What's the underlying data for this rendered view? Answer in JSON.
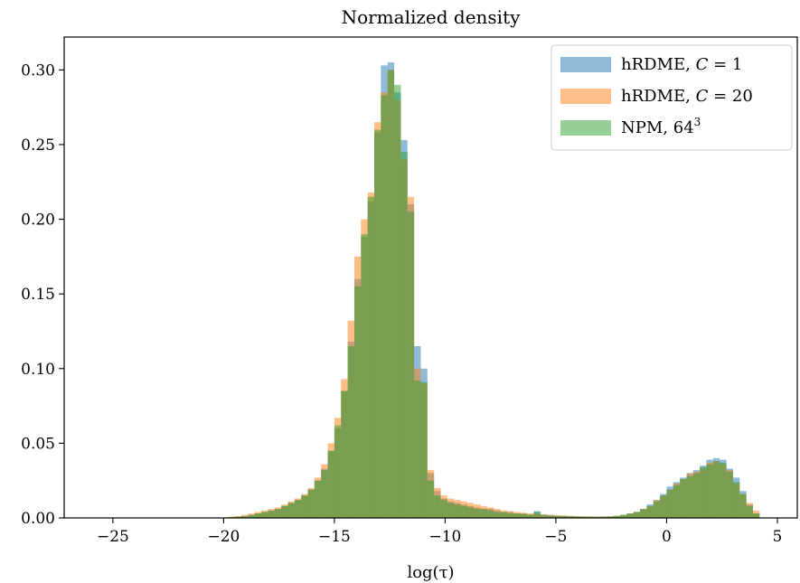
{
  "chart_data": {
    "type": "bar",
    "title": "Normalized density",
    "xlabel": "log(τ)",
    "ylabel": "",
    "xlim": [
      -27.2,
      5.9
    ],
    "ylim": [
      0,
      0.322
    ],
    "xticks": [
      -25,
      -20,
      -15,
      -10,
      -5,
      0,
      5
    ],
    "xtick_labels": [
      "−25",
      "−20",
      "−15",
      "−10",
      "−5",
      "0",
      "5"
    ],
    "yticks": [
      0.0,
      0.05,
      0.1,
      0.15,
      0.2,
      0.25,
      0.3
    ],
    "ytick_labels": [
      "0.00",
      "0.05",
      "0.10",
      "0.15",
      "0.20",
      "0.25",
      "0.30"
    ],
    "bin_width": 0.3,
    "grid": false,
    "legend_position": "top-right",
    "series": [
      {
        "name": "hRDME, C = 1",
        "legend_parts": [
          "hRDME, ",
          "C",
          " = 1"
        ],
        "color": "#1f77b4",
        "alpha": 0.5,
        "bins": [
          [
            -19.8,
            0.0005
          ],
          [
            -19.5,
            0.0008
          ],
          [
            -19.2,
            0.0013
          ],
          [
            -18.9,
            0.002
          ],
          [
            -18.6,
            0.003
          ],
          [
            -18.3,
            0.004
          ],
          [
            -18.0,
            0.005
          ],
          [
            -17.7,
            0.006
          ],
          [
            -17.4,
            0.008
          ],
          [
            -17.1,
            0.01
          ],
          [
            -16.8,
            0.012
          ],
          [
            -16.5,
            0.015
          ],
          [
            -16.2,
            0.019
          ],
          [
            -15.9,
            0.025
          ],
          [
            -15.6,
            0.033
          ],
          [
            -15.3,
            0.045
          ],
          [
            -15.0,
            0.06
          ],
          [
            -14.7,
            0.085
          ],
          [
            -14.4,
            0.118
          ],
          [
            -14.1,
            0.16
          ],
          [
            -13.8,
            0.188
          ],
          [
            -13.5,
            0.212
          ],
          [
            -13.2,
            0.258
          ],
          [
            -12.9,
            0.303
          ],
          [
            -12.6,
            0.305
          ],
          [
            -12.3,
            0.285
          ],
          [
            -12.0,
            0.253
          ],
          [
            -11.7,
            0.21
          ],
          [
            -11.4,
            0.115
          ],
          [
            -11.1,
            0.1
          ],
          [
            -10.8,
            0.03
          ],
          [
            -10.5,
            0.018
          ],
          [
            -10.2,
            0.013
          ],
          [
            -9.9,
            0.011
          ],
          [
            -9.6,
            0.01
          ],
          [
            -9.3,
            0.009
          ],
          [
            -9.0,
            0.008
          ],
          [
            -8.7,
            0.007
          ],
          [
            -8.4,
            0.006
          ],
          [
            -8.1,
            0.006
          ],
          [
            -7.8,
            0.005
          ],
          [
            -7.5,
            0.004
          ],
          [
            -7.2,
            0.004
          ],
          [
            -6.9,
            0.003
          ],
          [
            -6.6,
            0.003
          ],
          [
            -6.3,
            0.0025
          ],
          [
            -6.0,
            0.0045
          ],
          [
            -5.7,
            0.002
          ],
          [
            -5.4,
            0.002
          ],
          [
            -5.1,
            0.0015
          ],
          [
            -4.8,
            0.0015
          ],
          [
            -4.5,
            0.0012
          ],
          [
            -4.2,
            0.001
          ],
          [
            -3.9,
            0.001
          ],
          [
            -3.6,
            0.0009
          ],
          [
            -3.3,
            0.0008
          ],
          [
            -3.0,
            0.0008
          ],
          [
            -2.7,
            0.0009
          ],
          [
            -2.4,
            0.0012
          ],
          [
            -2.1,
            0.002
          ],
          [
            -1.8,
            0.003
          ],
          [
            -1.5,
            0.004
          ],
          [
            -1.2,
            0.006
          ],
          [
            -0.9,
            0.009
          ],
          [
            -0.6,
            0.012
          ],
          [
            -0.3,
            0.016
          ],
          [
            0.0,
            0.021
          ],
          [
            0.3,
            0.024
          ],
          [
            0.6,
            0.027
          ],
          [
            0.9,
            0.03
          ],
          [
            1.2,
            0.032
          ],
          [
            1.5,
            0.035
          ],
          [
            1.8,
            0.039
          ],
          [
            2.1,
            0.04
          ],
          [
            2.4,
            0.039
          ],
          [
            2.7,
            0.033
          ],
          [
            3.0,
            0.027
          ],
          [
            3.3,
            0.018
          ],
          [
            3.6,
            0.009
          ],
          [
            3.9,
            0.003
          ]
        ]
      },
      {
        "name": "hRDME, C = 20",
        "legend_parts": [
          "hRDME, ",
          "C",
          " = 20"
        ],
        "color": "#ff7f0e",
        "alpha": 0.5,
        "bins": [
          [
            -19.8,
            0.0008
          ],
          [
            -19.5,
            0.0012
          ],
          [
            -19.2,
            0.002
          ],
          [
            -18.9,
            0.003
          ],
          [
            -18.6,
            0.004
          ],
          [
            -18.3,
            0.005
          ],
          [
            -18.0,
            0.006
          ],
          [
            -17.7,
            0.007
          ],
          [
            -17.4,
            0.009
          ],
          [
            -17.1,
            0.011
          ],
          [
            -16.8,
            0.013
          ],
          [
            -16.5,
            0.016
          ],
          [
            -16.2,
            0.02
          ],
          [
            -15.9,
            0.027
          ],
          [
            -15.6,
            0.036
          ],
          [
            -15.3,
            0.05
          ],
          [
            -15.0,
            0.067
          ],
          [
            -14.7,
            0.093
          ],
          [
            -14.4,
            0.132
          ],
          [
            -14.1,
            0.175
          ],
          [
            -13.8,
            0.2
          ],
          [
            -13.5,
            0.218
          ],
          [
            -13.2,
            0.265
          ],
          [
            -12.9,
            0.285
          ],
          [
            -12.6,
            0.3
          ],
          [
            -12.3,
            0.28
          ],
          [
            -12.0,
            0.24
          ],
          [
            -11.7,
            0.215
          ],
          [
            -11.4,
            0.1
          ],
          [
            -11.1,
            0.09
          ],
          [
            -10.8,
            0.032
          ],
          [
            -10.5,
            0.02
          ],
          [
            -10.2,
            0.015
          ],
          [
            -9.9,
            0.013
          ],
          [
            -9.6,
            0.012
          ],
          [
            -9.3,
            0.011
          ],
          [
            -9.0,
            0.01
          ],
          [
            -8.7,
            0.009
          ],
          [
            -8.4,
            0.008
          ],
          [
            -8.1,
            0.007
          ],
          [
            -7.8,
            0.006
          ],
          [
            -7.5,
            0.005
          ],
          [
            -7.2,
            0.0045
          ],
          [
            -6.9,
            0.004
          ],
          [
            -6.6,
            0.0035
          ],
          [
            -6.3,
            0.003
          ],
          [
            -6.0,
            0.0028
          ],
          [
            -5.7,
            0.0025
          ],
          [
            -5.4,
            0.002
          ],
          [
            -5.1,
            0.0018
          ],
          [
            -4.8,
            0.0016
          ],
          [
            -4.5,
            0.0014
          ],
          [
            -4.2,
            0.0012
          ],
          [
            -3.9,
            0.001
          ],
          [
            -3.6,
            0.001
          ],
          [
            -3.3,
            0.0009
          ],
          [
            -3.0,
            0.001
          ],
          [
            -2.7,
            0.0012
          ],
          [
            -2.4,
            0.0015
          ],
          [
            -2.1,
            0.002
          ],
          [
            -1.8,
            0.003
          ],
          [
            -1.5,
            0.004
          ],
          [
            -1.2,
            0.006
          ],
          [
            -0.9,
            0.008
          ],
          [
            -0.6,
            0.012
          ],
          [
            -0.3,
            0.015
          ],
          [
            0.0,
            0.019
          ],
          [
            0.3,
            0.023
          ],
          [
            0.6,
            0.026
          ],
          [
            0.9,
            0.03
          ],
          [
            1.2,
            0.031
          ],
          [
            1.5,
            0.033
          ],
          [
            1.8,
            0.037
          ],
          [
            2.1,
            0.038
          ],
          [
            2.4,
            0.036
          ],
          [
            2.7,
            0.032
          ],
          [
            3.0,
            0.023
          ],
          [
            3.3,
            0.016
          ],
          [
            3.6,
            0.01
          ],
          [
            3.9,
            0.005
          ]
        ]
      },
      {
        "name": "NPM, 64^3",
        "legend_parts": [
          "NPM, 64",
          "3",
          ""
        ],
        "color": "#2ca02c",
        "alpha": 0.5,
        "bins": [
          [
            -19.8,
            0.0005
          ],
          [
            -19.5,
            0.0008
          ],
          [
            -19.2,
            0.0012
          ],
          [
            -18.9,
            0.002
          ],
          [
            -18.6,
            0.003
          ],
          [
            -18.3,
            0.004
          ],
          [
            -18.0,
            0.005
          ],
          [
            -17.7,
            0.006
          ],
          [
            -17.4,
            0.008
          ],
          [
            -17.1,
            0.01
          ],
          [
            -16.8,
            0.012
          ],
          [
            -16.5,
            0.015
          ],
          [
            -16.2,
            0.019
          ],
          [
            -15.9,
            0.025
          ],
          [
            -15.6,
            0.032
          ],
          [
            -15.3,
            0.045
          ],
          [
            -15.0,
            0.062
          ],
          [
            -14.7,
            0.085
          ],
          [
            -14.4,
            0.115
          ],
          [
            -14.1,
            0.155
          ],
          [
            -13.8,
            0.19
          ],
          [
            -13.5,
            0.215
          ],
          [
            -13.2,
            0.26
          ],
          [
            -12.9,
            0.283
          ],
          [
            -12.6,
            0.3
          ],
          [
            -12.3,
            0.29
          ],
          [
            -12.0,
            0.245
          ],
          [
            -11.7,
            0.205
          ],
          [
            -11.4,
            0.092
          ],
          [
            -11.1,
            0.091
          ],
          [
            -10.8,
            0.025
          ],
          [
            -10.5,
            0.015
          ],
          [
            -10.2,
            0.012
          ],
          [
            -9.9,
            0.01
          ],
          [
            -9.6,
            0.009
          ],
          [
            -9.3,
            0.008
          ],
          [
            -9.0,
            0.007
          ],
          [
            -8.7,
            0.006
          ],
          [
            -8.4,
            0.006
          ],
          [
            -8.1,
            0.005
          ],
          [
            -7.8,
            0.004
          ],
          [
            -7.5,
            0.004
          ],
          [
            -7.2,
            0.003
          ],
          [
            -6.9,
            0.003
          ],
          [
            -6.6,
            0.0025
          ],
          [
            -6.3,
            0.002
          ],
          [
            -6.0,
            0.0042
          ],
          [
            -5.7,
            0.002
          ],
          [
            -5.4,
            0.0015
          ],
          [
            -5.1,
            0.0013
          ],
          [
            -4.8,
            0.0012
          ],
          [
            -4.5,
            0.001
          ],
          [
            -4.2,
            0.001
          ],
          [
            -3.9,
            0.0009
          ],
          [
            -3.6,
            0.0008
          ],
          [
            -3.3,
            0.0008
          ],
          [
            -3.0,
            0.0009
          ],
          [
            -2.7,
            0.001
          ],
          [
            -2.4,
            0.0013
          ],
          [
            -2.1,
            0.002
          ],
          [
            -1.8,
            0.003
          ],
          [
            -1.5,
            0.004
          ],
          [
            -1.2,
            0.006
          ],
          [
            -0.9,
            0.008
          ],
          [
            -0.6,
            0.011
          ],
          [
            -0.3,
            0.015
          ],
          [
            0.0,
            0.019
          ],
          [
            0.3,
            0.022
          ],
          [
            0.6,
            0.026
          ],
          [
            0.9,
            0.028
          ],
          [
            1.2,
            0.03
          ],
          [
            1.5,
            0.034
          ],
          [
            1.8,
            0.036
          ],
          [
            2.1,
            0.038
          ],
          [
            2.4,
            0.037
          ],
          [
            2.7,
            0.031
          ],
          [
            3.0,
            0.024
          ],
          [
            3.3,
            0.016
          ],
          [
            3.6,
            0.008
          ],
          [
            3.9,
            0.003
          ]
        ]
      }
    ]
  }
}
